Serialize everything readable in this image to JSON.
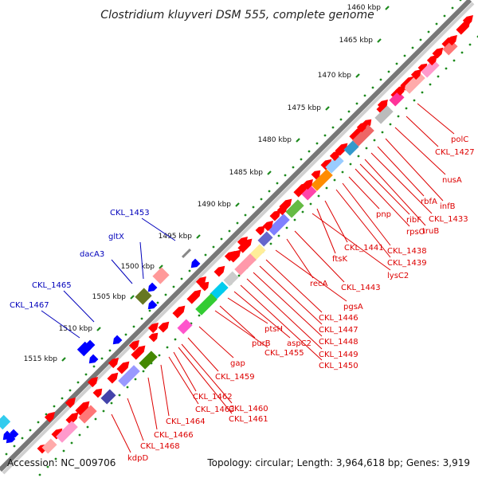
{
  "title": "Clostridium kluyveri DSM 555, complete genome",
  "accession": "Accession: NC_009706",
  "summary": "Topology: circular; Length: 3,964,618 bp; Genes: 3,919",
  "colors": {
    "backbone_light": "#d0d0d0",
    "backbone_dark": "#777777",
    "scale_dot": "#1d8a1d",
    "forward_gene": "#ff0000",
    "reverse_gene": "#0000ff",
    "forward_label": "#dd0000",
    "reverse_label": "#0000bb"
  },
  "ruler_labels": [
    "1460 kbp",
    "1465 kbp",
    "1470 kbp",
    "1475 kbp",
    "1480 kbp",
    "1485 kbp",
    "1490 kbp",
    "1495 kbp",
    "1500 kbp",
    "1505 kbp",
    "1510 kbp",
    "1515 kbp"
  ],
  "forward_gene_labels": [
    "polC",
    "CKL_1427",
    "nusA",
    "infB",
    "rbfA",
    "CKL_1433",
    "truB",
    "ribF",
    "rpsO",
    "pnp",
    "CKL_1438",
    "CKL_1439",
    "CKL_1441",
    "ftsK",
    "lysC2",
    "CKL_1443",
    "recA",
    "pgsA",
    "CKL_1446",
    "CKL_1447",
    "CKL_1448",
    "CKL_1449",
    "CKL_1450",
    "aspC2",
    "ptsH",
    "purB",
    "CKL_1455",
    "gap",
    "CKL_1459",
    "CKL_1460",
    "CKL_1461",
    "CKL_1462",
    "CKL_1463",
    "CKL_1464",
    "CKL_1466",
    "CKL_1468",
    "kdpD"
  ],
  "reverse_gene_labels": [
    "CKL_1453",
    "gltX",
    "dacA3",
    "CKL_1465",
    "CKL_1467"
  ]
}
